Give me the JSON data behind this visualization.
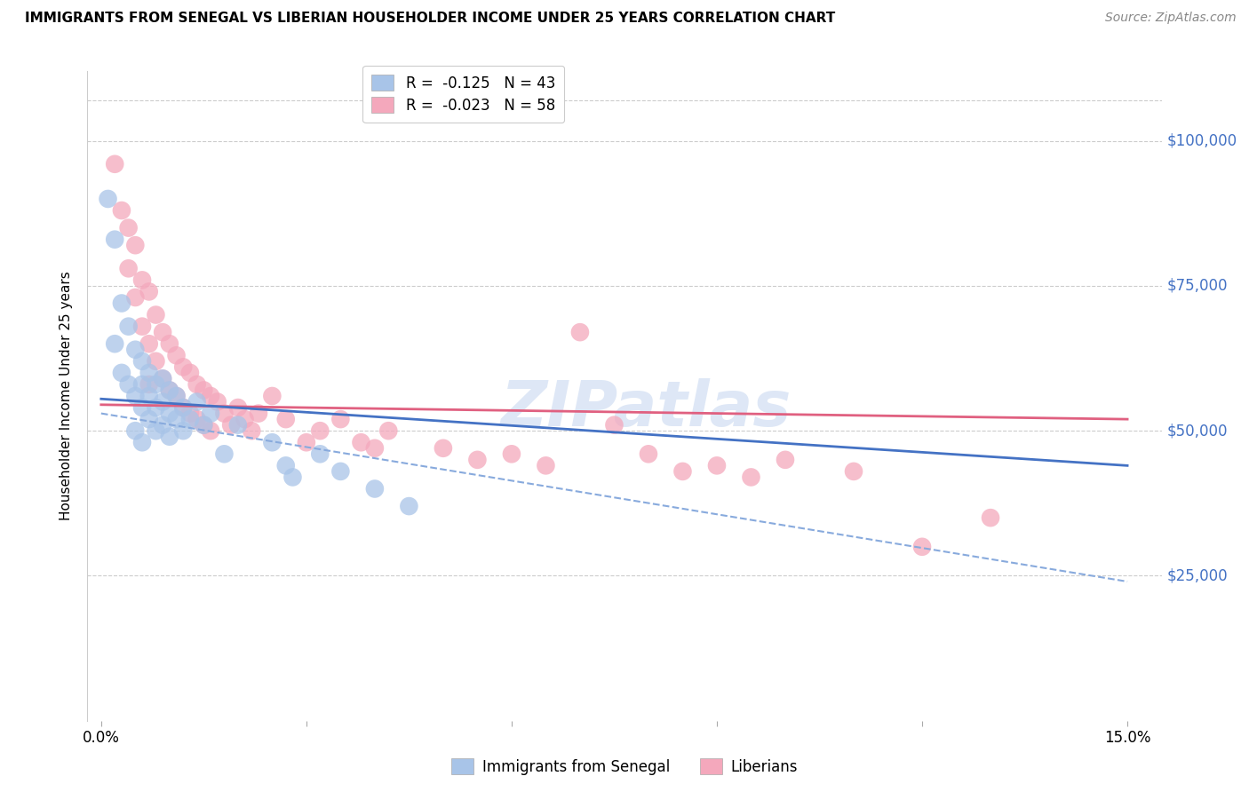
{
  "title": "IMMIGRANTS FROM SENEGAL VS LIBERIAN HOUSEHOLDER INCOME UNDER 25 YEARS CORRELATION CHART",
  "source": "Source: ZipAtlas.com",
  "ylabel": "Householder Income Under 25 years",
  "ylabel_ticks": [
    "$25,000",
    "$50,000",
    "$75,000",
    "$100,000"
  ],
  "xlim": [
    0.0,
    0.15
  ],
  "ylim": [
    0,
    112000
  ],
  "ytick_positions": [
    25000,
    50000,
    75000,
    100000
  ],
  "xtick_positions": [
    0.0,
    0.03,
    0.06,
    0.09,
    0.12,
    0.15
  ],
  "xtick_labels": [
    "0.0%",
    "",
    "",
    "",
    "",
    "15.0%"
  ],
  "r_senegal": -0.125,
  "n_senegal": 43,
  "r_liberian": -0.023,
  "n_liberian": 58,
  "senegal_color": "#a8c4e8",
  "liberian_color": "#f4a8bc",
  "trend_senegal_solid_color": "#4472c4",
  "trend_senegal_dash_color": "#88aadd",
  "trend_liberian_color": "#e06080",
  "watermark_color": "#c8d8f0",
  "senegal_x": [
    0.001,
    0.002,
    0.002,
    0.003,
    0.003,
    0.004,
    0.004,
    0.005,
    0.005,
    0.005,
    0.006,
    0.006,
    0.006,
    0.006,
    0.007,
    0.007,
    0.007,
    0.008,
    0.008,
    0.008,
    0.009,
    0.009,
    0.009,
    0.01,
    0.01,
    0.01,
    0.011,
    0.011,
    0.012,
    0.012,
    0.013,
    0.014,
    0.015,
    0.016,
    0.018,
    0.02,
    0.025,
    0.027,
    0.028,
    0.032,
    0.035,
    0.04,
    0.045
  ],
  "senegal_y": [
    90000,
    83000,
    65000,
    72000,
    60000,
    68000,
    58000,
    64000,
    56000,
    50000,
    62000,
    58000,
    54000,
    48000,
    60000,
    56000,
    52000,
    58000,
    54000,
    50000,
    59000,
    55000,
    51000,
    57000,
    53000,
    49000,
    56000,
    52000,
    54000,
    50000,
    52000,
    55000,
    51000,
    53000,
    46000,
    51000,
    48000,
    44000,
    42000,
    46000,
    43000,
    40000,
    37000
  ],
  "liberian_x": [
    0.002,
    0.003,
    0.004,
    0.004,
    0.005,
    0.005,
    0.006,
    0.006,
    0.007,
    0.007,
    0.007,
    0.008,
    0.008,
    0.009,
    0.009,
    0.01,
    0.01,
    0.011,
    0.011,
    0.012,
    0.012,
    0.013,
    0.013,
    0.014,
    0.014,
    0.015,
    0.015,
    0.016,
    0.016,
    0.017,
    0.018,
    0.019,
    0.02,
    0.021,
    0.022,
    0.023,
    0.025,
    0.027,
    0.03,
    0.032,
    0.035,
    0.038,
    0.04,
    0.042,
    0.05,
    0.055,
    0.06,
    0.065,
    0.07,
    0.075,
    0.08,
    0.085,
    0.09,
    0.095,
    0.1,
    0.11,
    0.12,
    0.13
  ],
  "liberian_y": [
    96000,
    88000,
    85000,
    78000,
    82000,
    73000,
    76000,
    68000,
    74000,
    65000,
    58000,
    70000,
    62000,
    67000,
    59000,
    65000,
    57000,
    63000,
    56000,
    61000,
    54000,
    60000,
    53000,
    58000,
    52000,
    57000,
    51000,
    56000,
    50000,
    55000,
    53000,
    51000,
    54000,
    52000,
    50000,
    53000,
    56000,
    52000,
    48000,
    50000,
    52000,
    48000,
    47000,
    50000,
    47000,
    45000,
    46000,
    44000,
    67000,
    51000,
    46000,
    43000,
    44000,
    42000,
    45000,
    43000,
    30000,
    35000
  ],
  "trend_senegal_x0": 0.0,
  "trend_senegal_y0": 55500,
  "trend_senegal_x1": 0.15,
  "trend_senegal_y1": 44000,
  "trend_senegal_dash_x0": 0.0,
  "trend_senegal_dash_y0": 53000,
  "trend_senegal_dash_x1": 0.15,
  "trend_senegal_dash_y1": 24000,
  "trend_liberian_x0": 0.0,
  "trend_liberian_y0": 54500,
  "trend_liberian_x1": 0.15,
  "trend_liberian_y1": 52000
}
